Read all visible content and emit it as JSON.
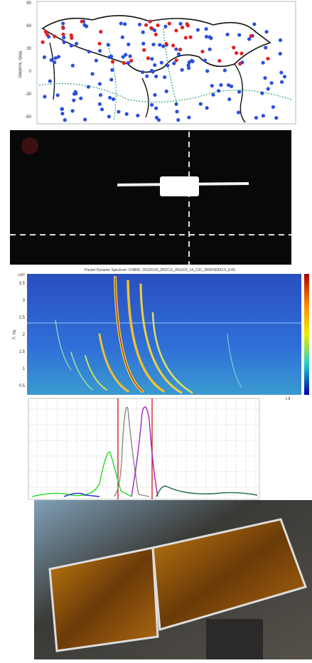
{
  "map": {
    "y_axis_label": "Широта, град.",
    "y_ticks": [
      "90",
      "60",
      "30",
      "0",
      "-30",
      "-60"
    ]
  },
  "spectrogram": {
    "title": "Packet Dynamic Spectrum: CHIBIS; 20120103_2R2C12_AS1103_14_C2C_0R05S6302.5_II-06",
    "y_axis_label": "F, Hz",
    "y_exponent": "x10³",
    "y_ticks": [
      "3.5",
      "3",
      "2.5",
      "2",
      "1.5",
      "1",
      "0.5"
    ],
    "x_tick": "1.8"
  }
}
